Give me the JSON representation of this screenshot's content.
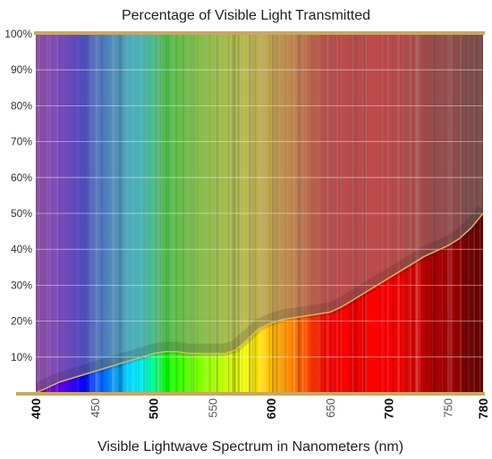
{
  "chart_data": {
    "type": "area",
    "title": "Percentage of Visible Light Transmitted",
    "xlabel": "Visible Lightwave Spectrum in Nanometers (nm)",
    "ylabel": "",
    "xlim": [
      400,
      780
    ],
    "ylim": [
      0,
      100
    ],
    "grid": true,
    "x_ticks": [
      {
        "value": 400,
        "label": "400",
        "major": true
      },
      {
        "value": 450,
        "label": "450",
        "major": false
      },
      {
        "value": 500,
        "label": "500",
        "major": true
      },
      {
        "value": 550,
        "label": "550",
        "major": false
      },
      {
        "value": 600,
        "label": "600",
        "major": true
      },
      {
        "value": 650,
        "label": "650",
        "major": false
      },
      {
        "value": 700,
        "label": "700",
        "major": true
      },
      {
        "value": 750,
        "label": "750",
        "major": false
      },
      {
        "value": 780,
        "label": "780",
        "major": true
      }
    ],
    "y_ticks": [
      {
        "value": 10,
        "label": "10%"
      },
      {
        "value": 20,
        "label": "20%"
      },
      {
        "value": 30,
        "label": "30%"
      },
      {
        "value": 40,
        "label": "40%"
      },
      {
        "value": 50,
        "label": "50%"
      },
      {
        "value": 60,
        "label": "60%"
      },
      {
        "value": 70,
        "label": "70%"
      },
      {
        "value": 80,
        "label": "80%"
      },
      {
        "value": 90,
        "label": "90%"
      },
      {
        "value": 100,
        "label": "100%"
      }
    ],
    "series": [
      {
        "x": [
          400,
          410,
          420,
          430,
          440,
          450,
          460,
          470,
          480,
          490,
          500,
          510,
          520,
          530,
          540,
          550,
          560,
          570,
          580,
          590,
          600,
          610,
          620,
          630,
          640,
          650,
          660,
          670,
          680,
          690,
          700,
          710,
          720,
          730,
          740,
          750,
          760,
          770,
          780
        ],
        "y": [
          0,
          1.5,
          3,
          4,
          5,
          6,
          7,
          8,
          9,
          10,
          11,
          11.5,
          11.5,
          11,
          11,
          11,
          11,
          12,
          15,
          18,
          19.5,
          20.5,
          21,
          21.5,
          22,
          22.5,
          24,
          26,
          28,
          30,
          32,
          34,
          36,
          38,
          39.5,
          41,
          43,
          46,
          50
        ]
      }
    ],
    "colors": {
      "line": "#d7b565",
      "frame": "#c9a860",
      "veil": "#888888"
    }
  }
}
